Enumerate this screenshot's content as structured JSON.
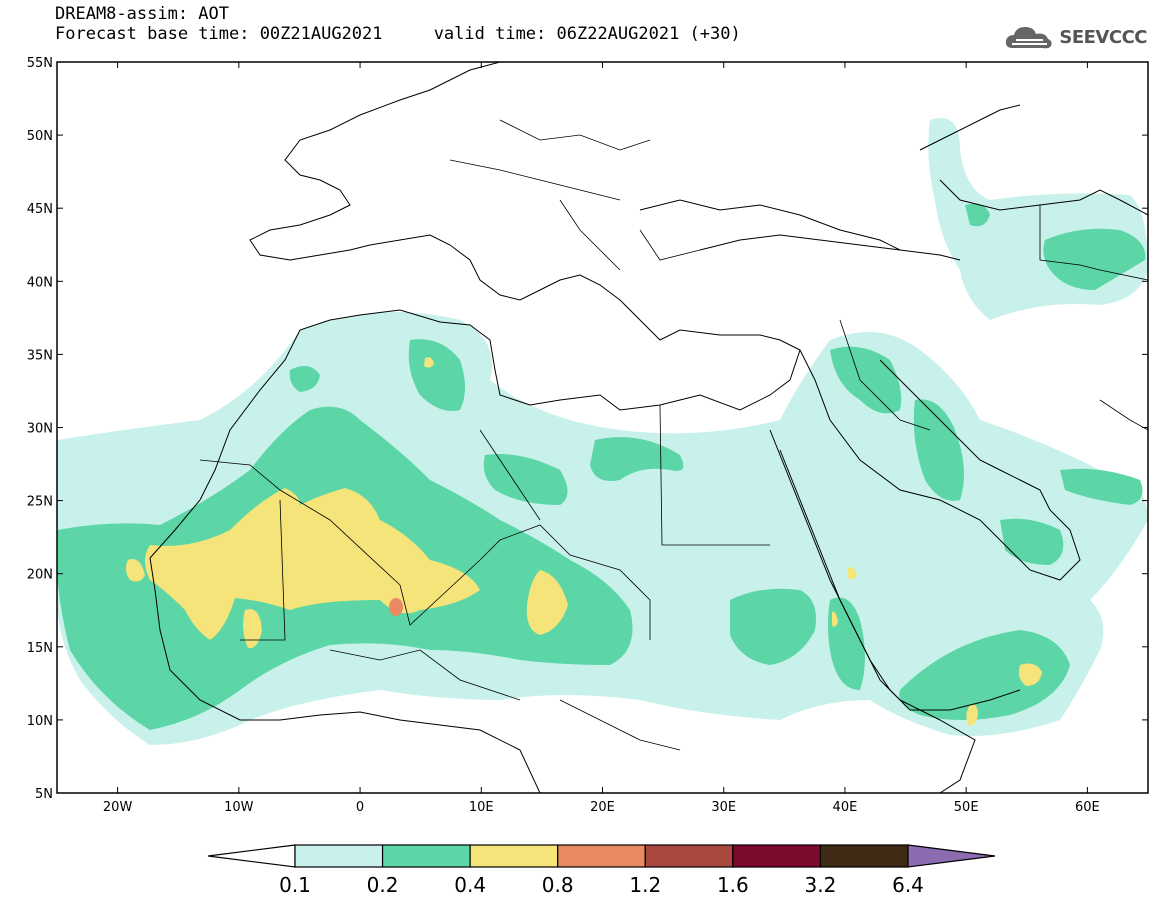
{
  "header": {
    "title_line1": "DREAM8-assim: AOT",
    "title_line2": "Forecast base time: 00Z21AUG2021     valid time: 06Z22AUG2021 (+30)"
  },
  "logo": {
    "text": "SEEVCCC",
    "icon": "cloud-icon"
  },
  "map": {
    "lon_range": [
      -25,
      65
    ],
    "lat_range": [
      5,
      55
    ],
    "lat_ticks": [
      "55N",
      "50N",
      "45N",
      "40N",
      "35N",
      "30N",
      "25N",
      "20N",
      "15N",
      "10N",
      "5N"
    ],
    "lon_ticks": [
      "20W",
      "10W",
      "0",
      "10E",
      "20E",
      "30E",
      "40E",
      "50E",
      "60E"
    ]
  },
  "colorbar": {
    "labels": [
      "0.1",
      "0.2",
      "0.4",
      "0.8",
      "1.2",
      "1.6",
      "3.2",
      "6.4"
    ],
    "colors": [
      "#ffffff",
      "#c7f1ea",
      "#5cd6a6",
      "#f5e47a",
      "#ea8a62",
      "#a9483f",
      "#7b0a2b",
      "#3f2a16",
      "#8c6bb1"
    ]
  },
  "colors": {
    "c1": "#c7f1ea",
    "c2": "#5cd6a6",
    "c3": "#f5e47a",
    "c4": "#ea8a62"
  }
}
